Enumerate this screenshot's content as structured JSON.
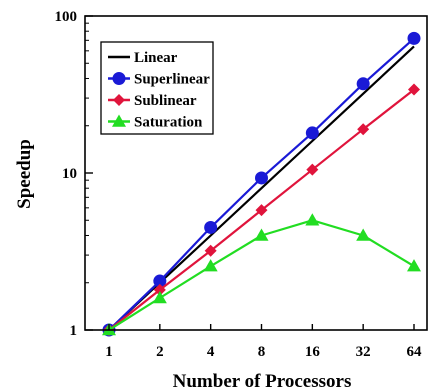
{
  "chart_data": {
    "type": "line",
    "xlabel": "Number of Processors",
    "ylabel": "Speedup",
    "x_scale": "log2",
    "y_scale": "log10",
    "xlim": [
      1,
      64
    ],
    "ylim": [
      1,
      100
    ],
    "x": [
      1,
      2,
      4,
      8,
      16,
      32,
      64
    ],
    "x_tick_labels": [
      "1",
      "2",
      "4",
      "8",
      "16",
      "32",
      "64"
    ],
    "y_ticks": [
      1,
      10,
      100
    ],
    "y_tick_labels": [
      "1",
      "10",
      "100"
    ],
    "grid": false,
    "legend_position": "top-left",
    "series": [
      {
        "name": "Linear",
        "color": "#000000",
        "marker": "none",
        "values": [
          1,
          2,
          4,
          8,
          16,
          32,
          64
        ]
      },
      {
        "name": "Superlinear",
        "color": "#1a1ad6",
        "marker": "circle",
        "values": [
          1,
          2.05,
          4.5,
          9.3,
          18,
          37,
          72
        ]
      },
      {
        "name": "Sublinear",
        "color": "#e0143c",
        "marker": "diamond",
        "values": [
          1,
          1.8,
          3.2,
          5.8,
          10.5,
          19,
          34
        ]
      },
      {
        "name": "Saturation",
        "color": "#22dd22",
        "marker": "triangle",
        "values": [
          1,
          1.6,
          2.55,
          4.0,
          5.0,
          4.0,
          2.55
        ]
      }
    ]
  }
}
